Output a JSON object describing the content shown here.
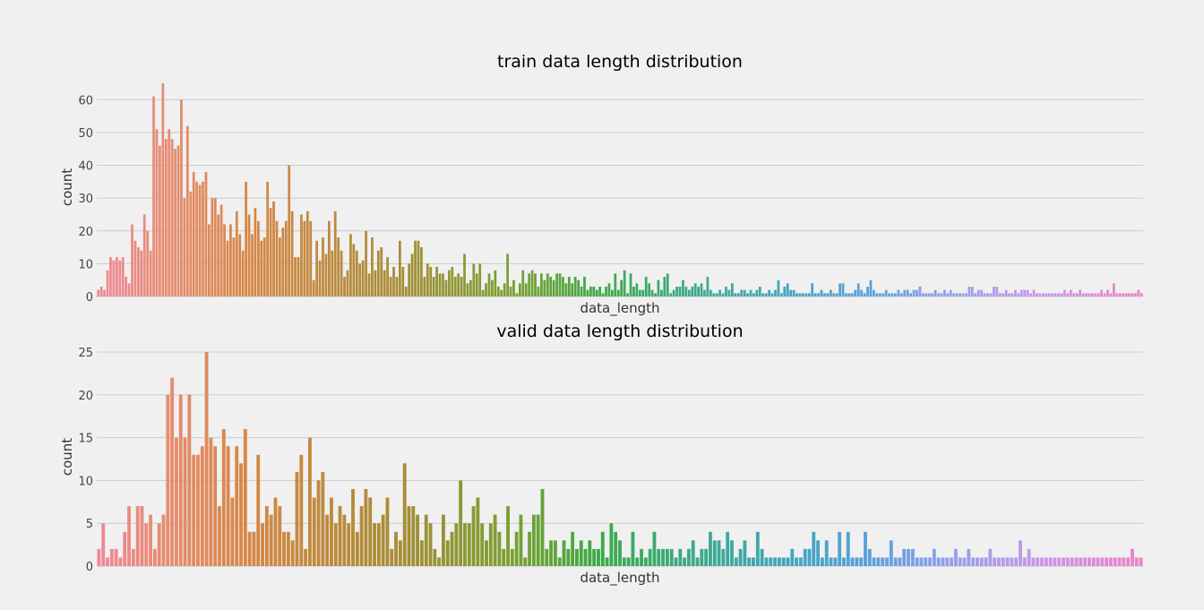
{
  "chart_data": [
    {
      "type": "bar",
      "title": "train data length distribution",
      "xlabel": "data_length",
      "ylabel": "count",
      "ylim": [
        0,
        65
      ],
      "yticks": [
        0,
        10,
        20,
        30,
        40,
        50,
        60
      ],
      "grid": "horizontal",
      "x_tick_labels_shown": false,
      "palette": "husl gradient (pink → orange → olive → green → teal → blue → lavender → pink)",
      "values": [
        2,
        3,
        2,
        8,
        12,
        11,
        12,
        11,
        12,
        6,
        4,
        22,
        17,
        15,
        14,
        25,
        20,
        14,
        61,
        51,
        46,
        65,
        48,
        51,
        48,
        45,
        46,
        60,
        30,
        52,
        32,
        38,
        35,
        34,
        35,
        38,
        22,
        30,
        30,
        25,
        28,
        22,
        17,
        22,
        18,
        26,
        19,
        14,
        35,
        25,
        19,
        27,
        23,
        17,
        18,
        35,
        27,
        29,
        23,
        18,
        21,
        23,
        40,
        26,
        12,
        12,
        25,
        23,
        26,
        23,
        5,
        17,
        11,
        18,
        13,
        23,
        14,
        26,
        18,
        14,
        6,
        8,
        19,
        16,
        14,
        10,
        11,
        20,
        7,
        18,
        8,
        14,
        15,
        8,
        12,
        6,
        9,
        6,
        17,
        9,
        3,
        10,
        13,
        17,
        17,
        15,
        6,
        10,
        9,
        6,
        9,
        7,
        7,
        5,
        8,
        9,
        6,
        7,
        6,
        13,
        4,
        5,
        10,
        7,
        10,
        2,
        4,
        7,
        5,
        8,
        3,
        2,
        4,
        13,
        3,
        5,
        1,
        4,
        8,
        4,
        7,
        8,
        7,
        3,
        7,
        5,
        7,
        6,
        5,
        7,
        7,
        6,
        4,
        6,
        4,
        6,
        5,
        3,
        6,
        2,
        3,
        3,
        2,
        3,
        1,
        3,
        4,
        2,
        7,
        2,
        5,
        8,
        1,
        7,
        3,
        4,
        2,
        2,
        6,
        4,
        2,
        1,
        5,
        2,
        6,
        7,
        1,
        2,
        3,
        3,
        5,
        3,
        2,
        3,
        4,
        3,
        4,
        2,
        6,
        2,
        1,
        1,
        2,
        1,
        3,
        2,
        4,
        1,
        1,
        2,
        2,
        1,
        2,
        1,
        2,
        3,
        1,
        1,
        2,
        1,
        2,
        5,
        1,
        3,
        4,
        2,
        2,
        1,
        1,
        1,
        1,
        1,
        4,
        1,
        1,
        2,
        1,
        1,
        2,
        1,
        1,
        4,
        4,
        1,
        1,
        1,
        2,
        4,
        2,
        1,
        3,
        5,
        2,
        1,
        1,
        1,
        2,
        1,
        1,
        1,
        2,
        1,
        2,
        2,
        1,
        2,
        2,
        3,
        1,
        1,
        1,
        1,
        2,
        1,
        1,
        2,
        1,
        2,
        1,
        1,
        1,
        1,
        1,
        3,
        3,
        1,
        2,
        2,
        1,
        1,
        1,
        3,
        3,
        1,
        1,
        2,
        1,
        1,
        2,
        1,
        2,
        2,
        2,
        1,
        2,
        1,
        1,
        1,
        1,
        1,
        1,
        1,
        1,
        1,
        2,
        1,
        2,
        1,
        1,
        2,
        1,
        1,
        1,
        1,
        1,
        1,
        2,
        1,
        2,
        1,
        4,
        1,
        1,
        1,
        1,
        1,
        1,
        1,
        2,
        1
      ]
    },
    {
      "type": "bar",
      "title": "valid data length distribution",
      "xlabel": "data_length",
      "ylabel": "count",
      "ylim": [
        0,
        25
      ],
      "yticks": [
        0,
        5,
        10,
        15,
        20,
        25
      ],
      "grid": "horizontal",
      "x_tick_labels_shown": false,
      "palette": "husl gradient (pink → orange → olive → green → teal → blue → lavender → pink)",
      "values": [
        2,
        5,
        1,
        2,
        2,
        1,
        4,
        7,
        2,
        7,
        7,
        5,
        6,
        2,
        5,
        6,
        20,
        22,
        15,
        20,
        15,
        20,
        13,
        13,
        14,
        25,
        15,
        14,
        7,
        16,
        14,
        8,
        14,
        12,
        16,
        4,
        4,
        13,
        5,
        7,
        6,
        8,
        7,
        4,
        4,
        3,
        11,
        13,
        2,
        15,
        8,
        10,
        11,
        6,
        8,
        5,
        7,
        6,
        5,
        9,
        4,
        7,
        9,
        8,
        5,
        5,
        6,
        8,
        2,
        4,
        3,
        12,
        7,
        7,
        6,
        3,
        6,
        5,
        2,
        1,
        6,
        3,
        4,
        5,
        10,
        5,
        5,
        7,
        8,
        5,
        3,
        5,
        6,
        4,
        2,
        7,
        2,
        4,
        6,
        1,
        4,
        6,
        6,
        9,
        2,
        3,
        3,
        1,
        3,
        2,
        4,
        2,
        3,
        2,
        3,
        2,
        2,
        4,
        1,
        5,
        4,
        3,
        1,
        1,
        4,
        1,
        2,
        1,
        2,
        4,
        2,
        2,
        2,
        2,
        1,
        2,
        1,
        2,
        3,
        1,
        2,
        2,
        4,
        3,
        3,
        2,
        4,
        3,
        1,
        2,
        3,
        1,
        1,
        4,
        2,
        1,
        1,
        1,
        1,
        1,
        1,
        2,
        1,
        1,
        2,
        2,
        4,
        3,
        1,
        3,
        1,
        1,
        4,
        1,
        4,
        1,
        1,
        1,
        4,
        2,
        1,
        1,
        1,
        1,
        3,
        1,
        1,
        2,
        2,
        2,
        1,
        1,
        1,
        1,
        2,
        1,
        1,
        1,
        1,
        2,
        1,
        1,
        2,
        1,
        1,
        1,
        1,
        2,
        1,
        1,
        1,
        1,
        1,
        1,
        3,
        1,
        2,
        1,
        1,
        1,
        1,
        1,
        1,
        1,
        1,
        1,
        1,
        1,
        1,
        1,
        1,
        1,
        1,
        1,
        1,
        1,
        1,
        1,
        1,
        1,
        2,
        1,
        1
      ]
    }
  ]
}
